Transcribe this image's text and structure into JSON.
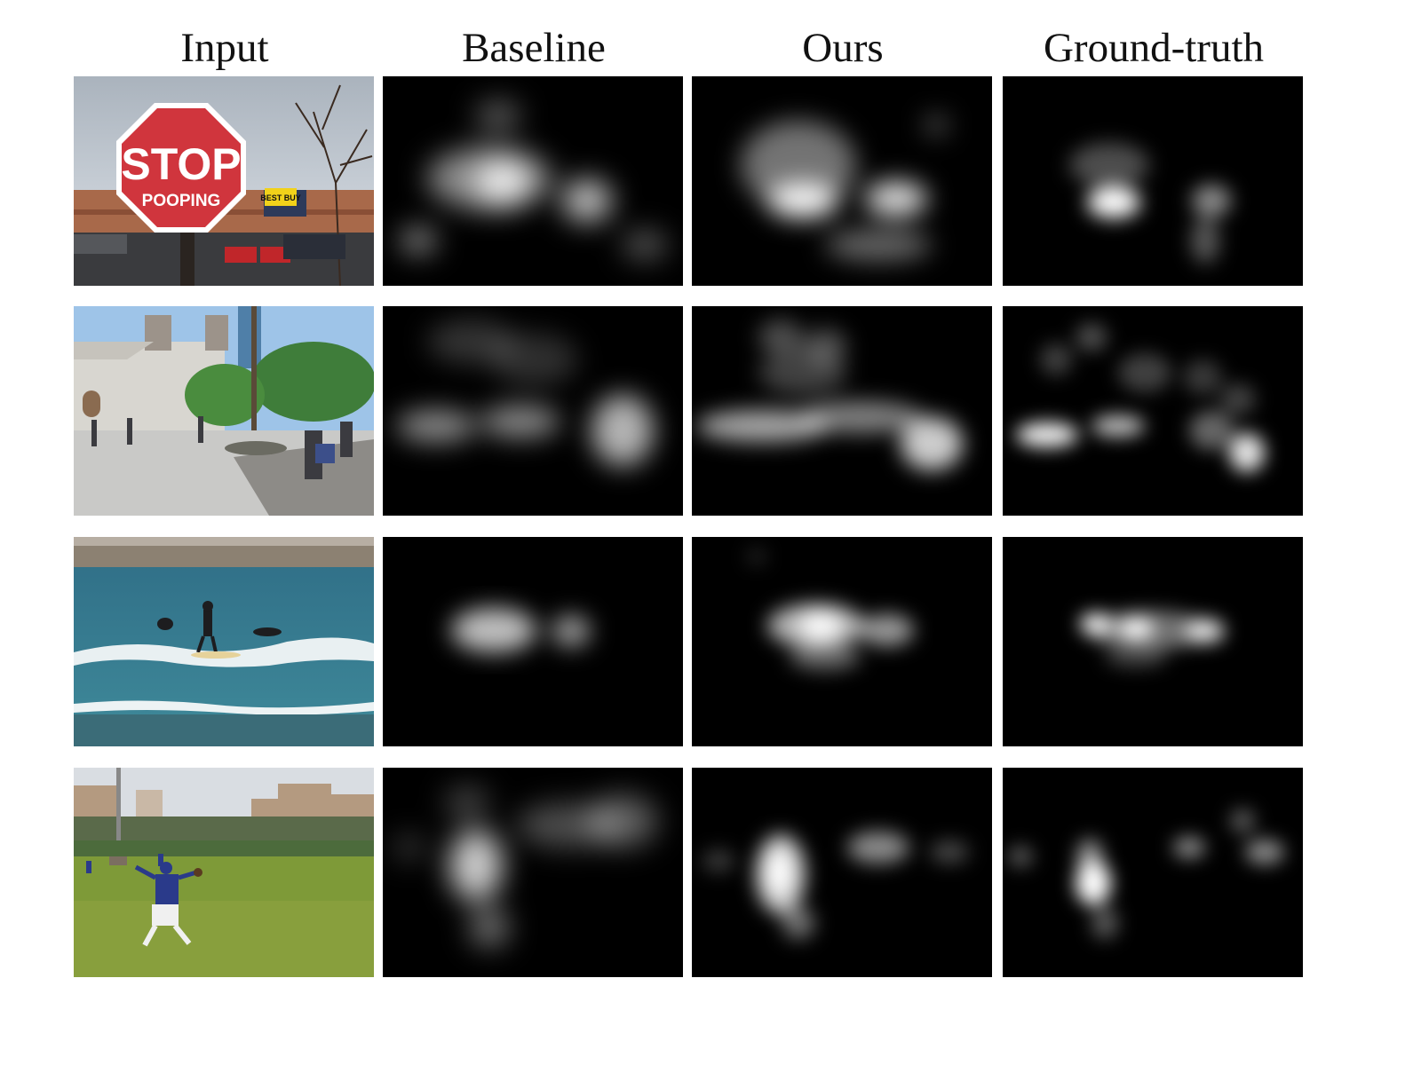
{
  "columns": [
    "Input",
    "Baseline",
    "Ours",
    "Ground-truth"
  ],
  "rows": [
    {
      "scene": "stop-sign",
      "sign_text": "STOP",
      "sign_subtext": "POOPING",
      "store_sign": "BEST BUY"
    },
    {
      "scene": "plaza"
    },
    {
      "scene": "surfing"
    },
    {
      "scene": "baseball"
    }
  ]
}
